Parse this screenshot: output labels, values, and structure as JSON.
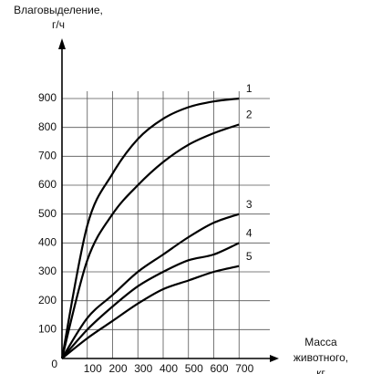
{
  "chart_data": {
    "type": "line",
    "y_label": [
      "Влаговыделение,",
      "г/ч"
    ],
    "x_label": [
      "Масса",
      "животного,",
      "кг"
    ],
    "x": [
      0,
      100,
      200,
      300,
      400,
      500,
      600,
      700
    ],
    "series": [
      {
        "name": "1",
        "color": "#000000",
        "values": [
          0,
          460,
          640,
          760,
          830,
          870,
          890,
          900
        ]
      },
      {
        "name": "2",
        "color": "#000000",
        "values": [
          0,
          340,
          500,
          600,
          680,
          740,
          780,
          810
        ]
      },
      {
        "name": "3",
        "color": "#000000",
        "values": [
          0,
          140,
          220,
          300,
          360,
          420,
          470,
          500
        ]
      },
      {
        "name": "4",
        "color": "#000000",
        "values": [
          0,
          100,
          180,
          250,
          300,
          340,
          360,
          400
        ]
      },
      {
        "name": "5",
        "color": "#000000",
        "values": [
          0,
          70,
          130,
          190,
          240,
          270,
          300,
          320
        ]
      }
    ],
    "xlim": [
      0,
      800
    ],
    "xticks": [
      100,
      200,
      300,
      400,
      500,
      600,
      700
    ],
    "ylim": [
      0,
      900
    ],
    "yticks": [
      0,
      100,
      200,
      300,
      400,
      500,
      600,
      700,
      800,
      900
    ],
    "grid": true
  }
}
